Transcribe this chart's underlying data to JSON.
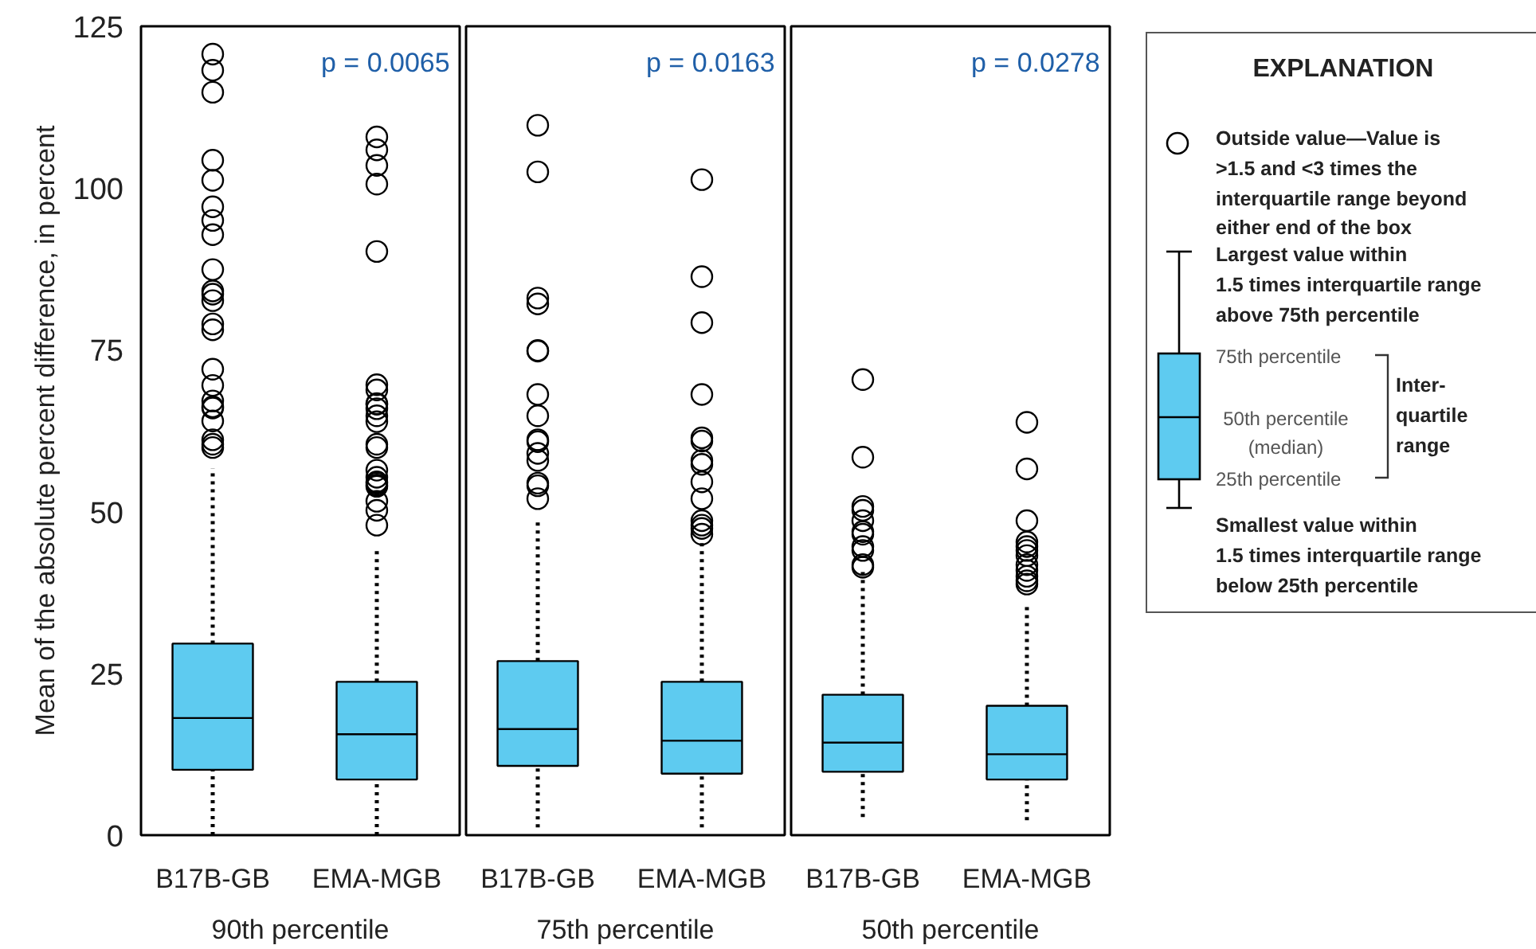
{
  "chart_data": [
    {
      "type": "box",
      "categories": [
        "B17B-GB",
        "EMA-MGB"
      ],
      "xlabel": "90th percentile",
      "ylabel": "Mean of the absolute percent difference, in percent",
      "ylim": [
        0,
        125
      ],
      "yticks": [
        0,
        25,
        50,
        75,
        100,
        125
      ],
      "marker": "circle",
      "line_style": "dotted",
      "annotations": [
        "p = 0.0065"
      ],
      "series": [
        {
          "color": "#5ecbf0",
          "boxes": [
            {
              "low": 0,
              "q1": 10.1,
              "median": 18.1,
              "q3": 29.6,
              "high": 56.7,
              "outliers": [
                120.7,
                118.2,
                114.8,
                104.3,
                101.2,
                97.1,
                95.0,
                92.8,
                87.4,
                84.1,
                83.6,
                82.6,
                79.0,
                78.1,
                72.0,
                69.5,
                67.1,
                66.2,
                66.0,
                64.0,
                61.1,
                60.4,
                59.9
              ]
            },
            {
              "low": 0,
              "q1": 8.6,
              "median": 15.6,
              "q3": 23.7,
              "high": 44.6,
              "outliers": [
                107.9,
                105.9,
                103.5,
                100.6,
                90.2,
                69.6,
                68.8,
                66.7,
                66.6,
                65.9,
                64.8,
                63.9,
                60.4,
                59.9,
                56.4,
                55.3,
                54.6,
                54.4,
                54.1,
                53.9,
                51.6,
                50.2,
                47.9
              ]
            }
          ]
        }
      ]
    },
    {
      "type": "box",
      "categories": [
        "B17B-GB",
        "EMA-MGB"
      ],
      "xlabel": "75th percentile",
      "ylim": [
        0,
        125
      ],
      "yticks": [
        0,
        25,
        50,
        75,
        100,
        125
      ],
      "tick_labels": "x",
      "marker": "circle",
      "line_style": "dotted",
      "annotations": [
        "p = 0.0163"
      ],
      "series": [
        {
          "color": "#5ecbf0",
          "boxes": [
            {
              "low": 1.2,
              "q1": 10.7,
              "median": 16.4,
              "q3": 26.9,
              "high": 49.0,
              "outliers": [
                109.7,
                102.5,
                83.0,
                82.1,
                74.9,
                74.8,
                68.1,
                64.8,
                61.1,
                60.8,
                59.0,
                57.9,
                54.4,
                54.0,
                52.0
              ]
            },
            {
              "low": 1.2,
              "q1": 9.5,
              "median": 14.6,
              "q3": 23.7,
              "high": 45.5,
              "outliers": [
                101.3,
                86.3,
                79.2,
                68.1,
                61.4,
                60.9,
                57.9,
                57.3,
                54.6,
                52.0,
                48.6,
                47.9,
                47.4,
                46.5
              ]
            }
          ]
        }
      ]
    },
    {
      "type": "box",
      "categories": [
        "B17B-GB",
        "EMA-MGB"
      ],
      "xlabel": "50th percentile",
      "ylim": [
        0,
        125
      ],
      "yticks": [
        0,
        25,
        50,
        75,
        100,
        125
      ],
      "tick_labels": "x",
      "marker": "circle",
      "line_style": "dotted",
      "annotations": [
        "p = 0.0278"
      ],
      "series": [
        {
          "color": "#5ecbf0",
          "boxes": [
            {
              "low": 2.8,
              "q1": 9.8,
              "median": 14.3,
              "q3": 21.7,
              "high": 40.9,
              "outliers": [
                70.4,
                58.4,
                50.8,
                50.2,
                48.6,
                46.9,
                46.5,
                44.6,
                44.0,
                41.8,
                41.4
              ]
            },
            {
              "low": 2.3,
              "q1": 8.6,
              "median": 12.5,
              "q3": 20.0,
              "high": 36.0,
              "outliers": [
                63.8,
                56.6,
                48.6,
                45.3,
                44.6,
                44.0,
                43.2,
                41.8,
                40.9,
                40.0,
                39.3,
                38.8
              ]
            }
          ]
        }
      ]
    },
    {
      "type": "other",
      "title": "EXPLANATION",
      "annotations": [
        "Outside value—Value is\n>1.5 and <3 times the\ninterquartile range beyond\neither end of the box",
        "Largest value within\n1.5 times interquartile range\nabove 75th percentile",
        "75th percentile",
        "50th percentile\n(median)",
        "25th percentile",
        "Inter-\nquartile\nrange",
        "Smallest value within\n1.5 times interquartile range\nbelow 25th percentile"
      ]
    }
  ]
}
